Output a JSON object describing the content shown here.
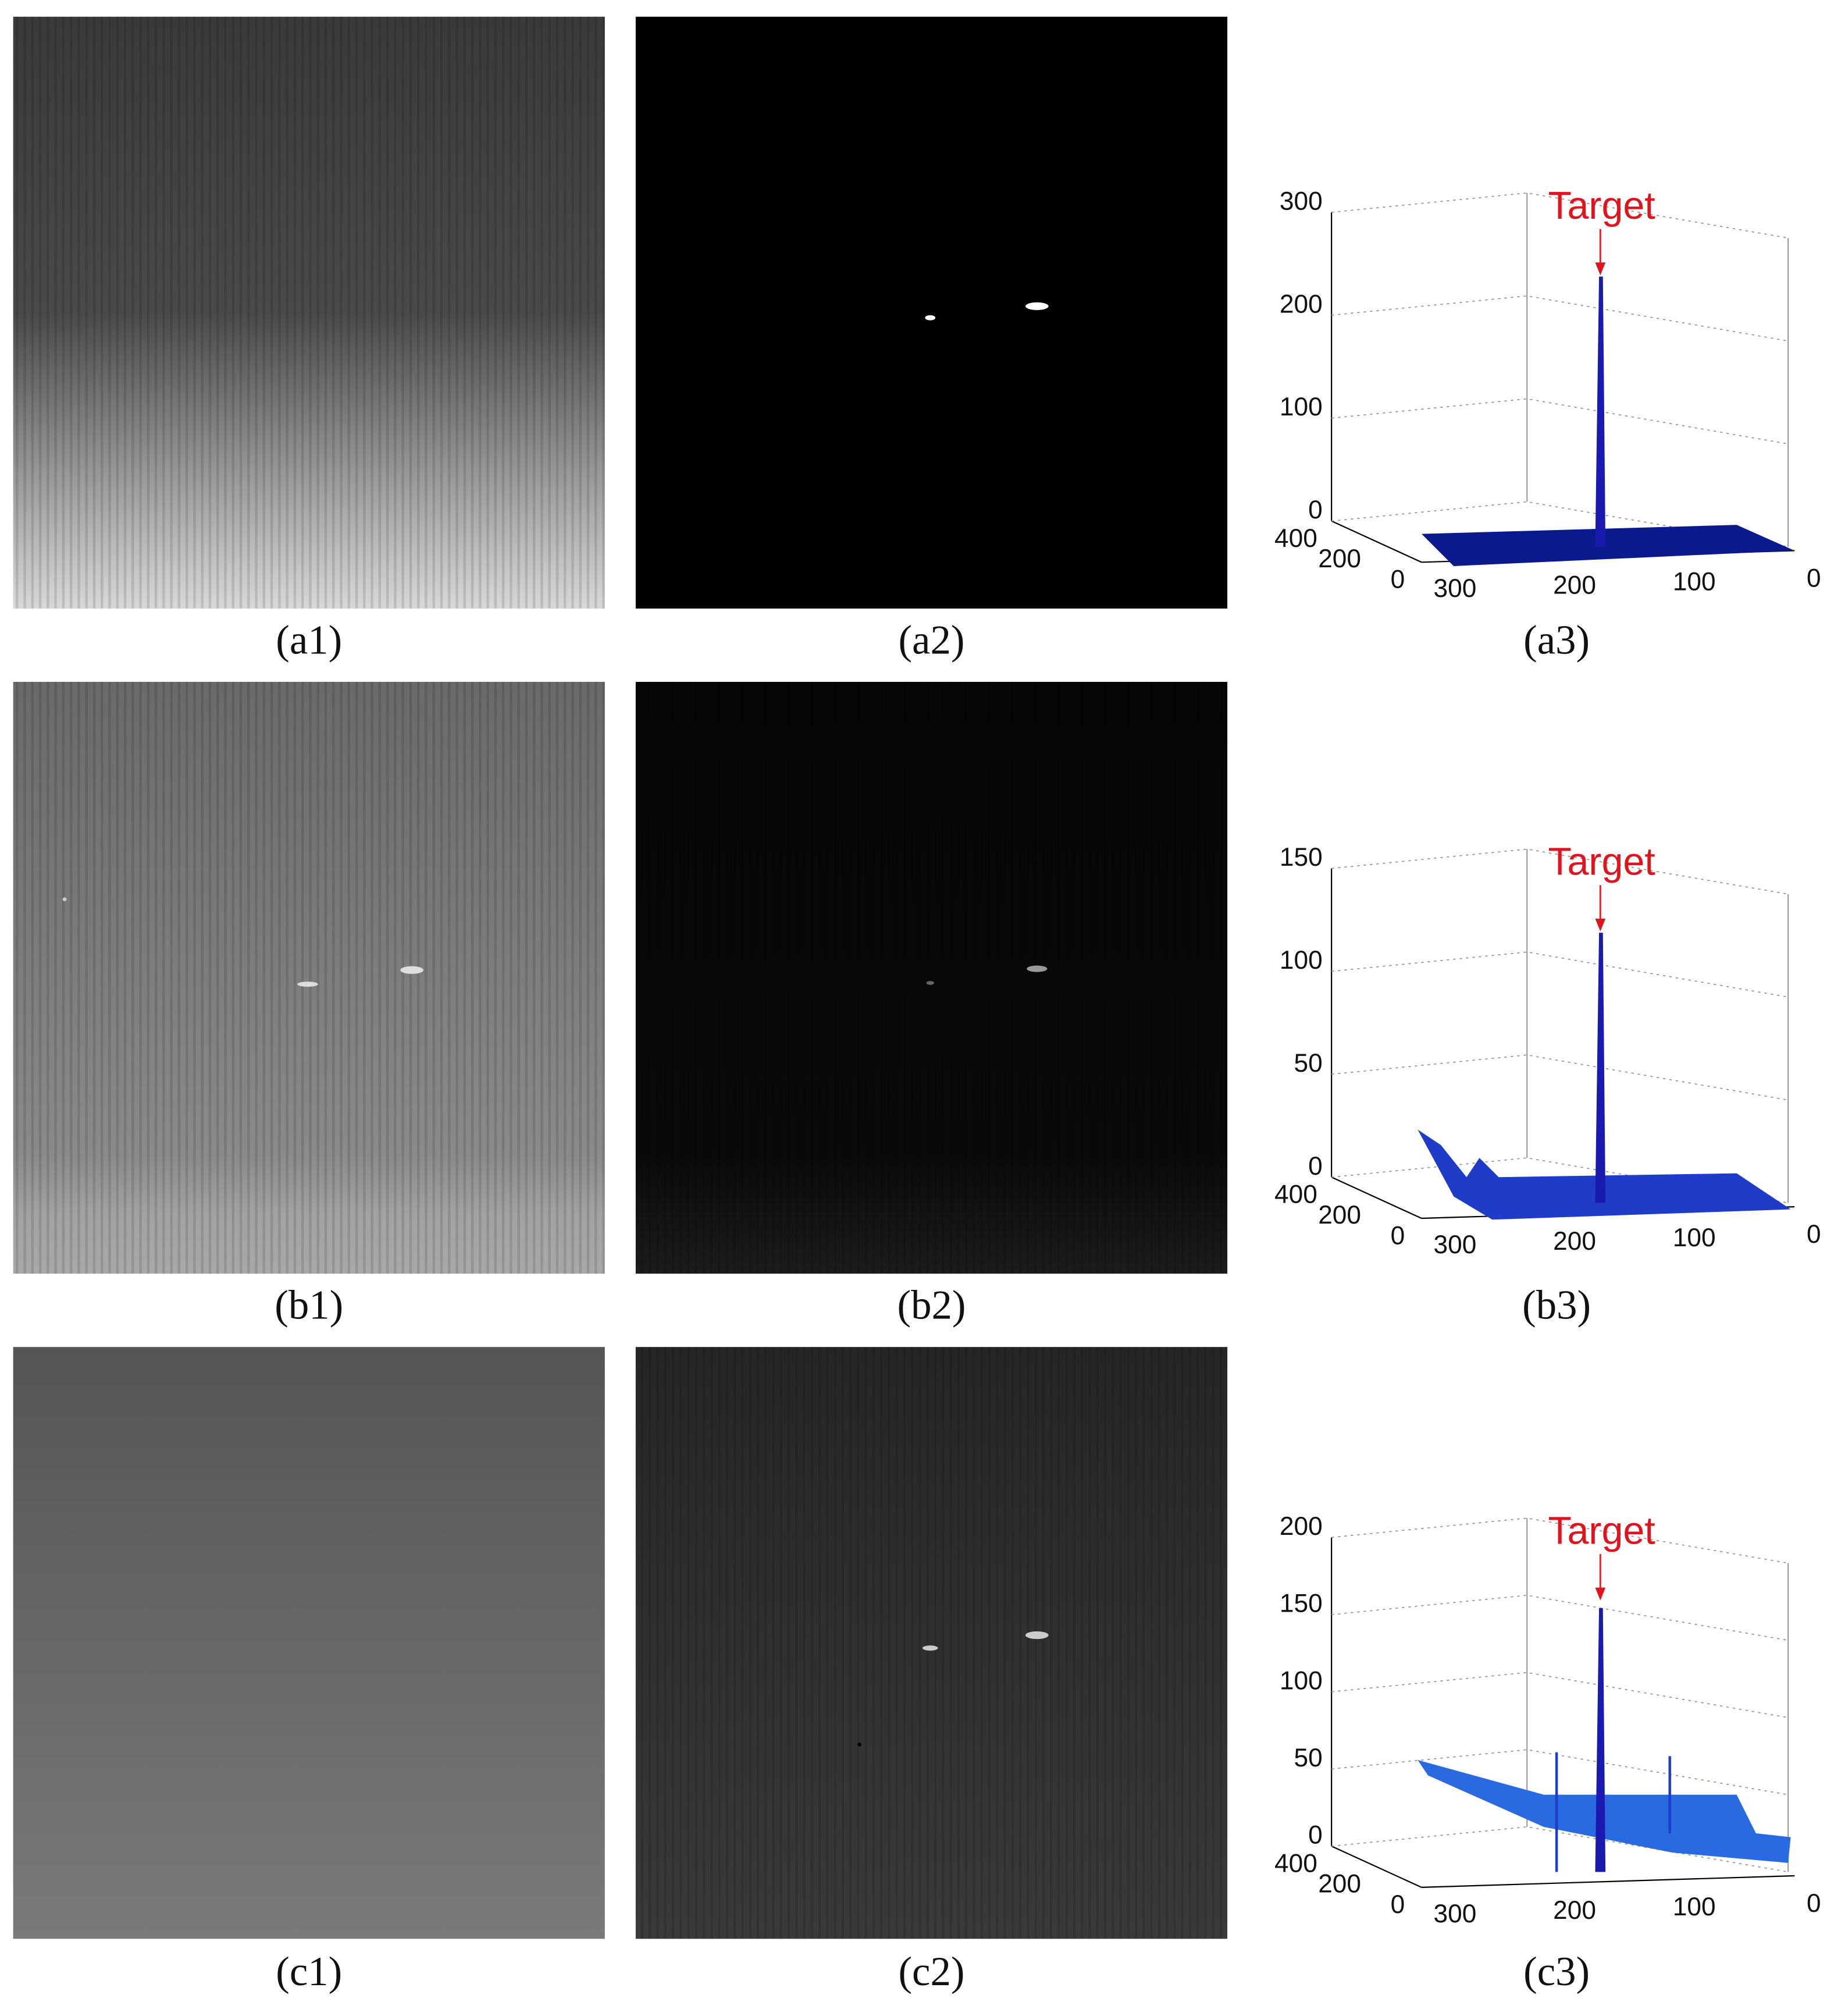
{
  "captions": [
    "(a1)",
    "(a2)",
    "(a3)",
    "(b1)",
    "(b2)",
    "(b3)",
    "(c1)",
    "(c2)",
    "(c3)"
  ],
  "plots": [
    {
      "annotation": "Target",
      "zticks": [
        0,
        100,
        200,
        300
      ],
      "yticks": [
        400,
        200,
        0
      ],
      "xticks": [
        300,
        200,
        100,
        0
      ]
    },
    {
      "annotation": "Target",
      "zticks": [
        0,
        50,
        100,
        150
      ],
      "yticks": [
        400,
        200,
        0
      ],
      "xticks": [
        300,
        200,
        100,
        0
      ]
    },
    {
      "annotation": "Target",
      "zticks": [
        0,
        50,
        100,
        150,
        200
      ],
      "yticks": [
        400,
        200,
        0
      ],
      "xticks": [
        300,
        200,
        100,
        0
      ]
    }
  ]
}
